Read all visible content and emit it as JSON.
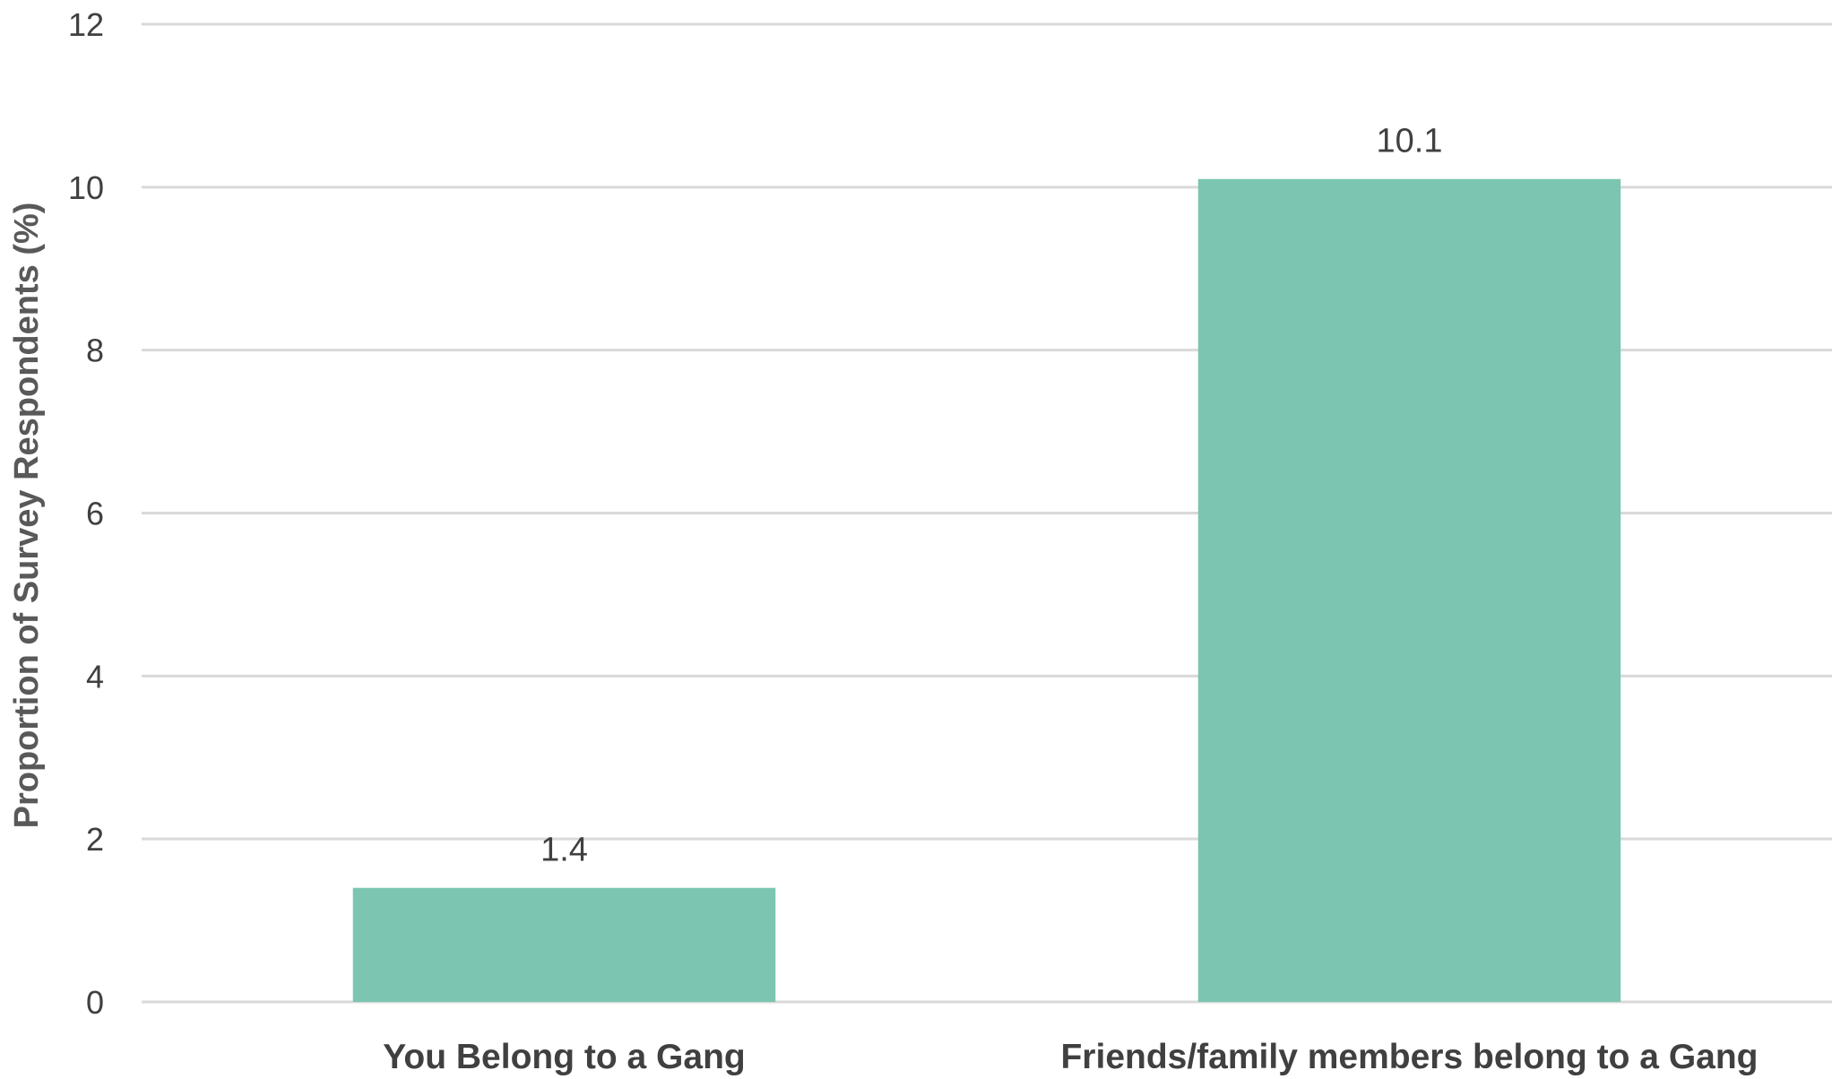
{
  "chart_data": {
    "type": "bar",
    "title": "",
    "xlabel": "",
    "ylabel": "Proportion of Survey Respondents (%)",
    "categories": [
      "You Belong to a Gang",
      "Friends/family members belong to a Gang"
    ],
    "values": [
      1.4,
      10.1
    ],
    "data_labels": [
      "1.4",
      "10.1"
    ],
    "ylim": [
      0,
      12
    ],
    "yticks": [
      0,
      2,
      4,
      6,
      8,
      10,
      12
    ],
    "ytick_labels": [
      "0",
      "2",
      "4",
      "6",
      "8",
      "10",
      "12"
    ],
    "grid": true,
    "legend": "none",
    "bar_color": "#7cc5b1",
    "gridline_color": "#d9d9d9",
    "text_color": "#404040"
  }
}
